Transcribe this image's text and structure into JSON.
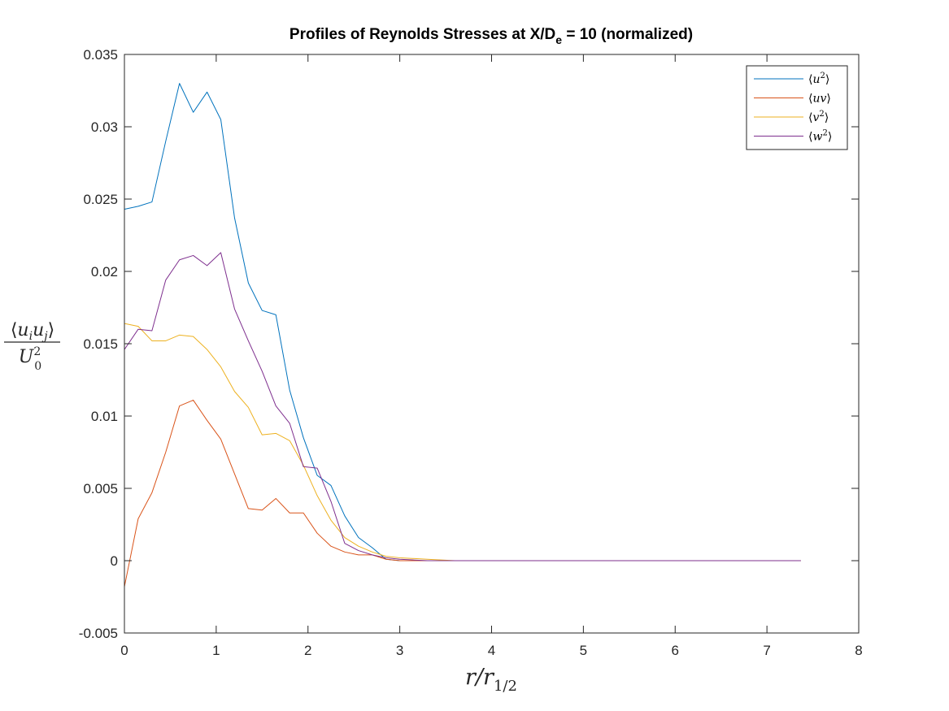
{
  "chart_data": {
    "type": "line",
    "title": {
      "main": "Profiles of Reynolds Stresses at X/D",
      "subscript": "e",
      "suffix": " = 10 (normalized)"
    },
    "xlabel": {
      "var": "r/r",
      "sub": "1/2"
    },
    "ylabel": {
      "numerator": {
        "open": "⟨",
        "a": "u",
        "a_sub": "i",
        "b": "u",
        "b_sub": "j",
        "close": "⟩"
      },
      "denominator": {
        "var": "U",
        "sup": "2",
        "sub": "0"
      }
    },
    "xlim": [
      0,
      8
    ],
    "ylim": [
      -0.005,
      0.035
    ],
    "xticks": [
      0,
      1,
      2,
      3,
      4,
      5,
      6,
      7,
      8
    ],
    "yticks": [
      -0.005,
      0,
      0.005,
      0.01,
      0.015,
      0.02,
      0.025,
      0.03,
      0.035
    ],
    "xtick_labels": [
      "0",
      "1",
      "2",
      "3",
      "4",
      "5",
      "6",
      "7",
      "8"
    ],
    "ytick_labels": [
      "-0.005",
      "0",
      "0.005",
      "0.01",
      "0.015",
      "0.02",
      "0.025",
      "0.03",
      "0.035"
    ],
    "grid": false,
    "legend_position": "top-right",
    "x": [
      0,
      0.15,
      0.3,
      0.45,
      0.6,
      0.75,
      0.9,
      1.05,
      1.2,
      1.35,
      1.5,
      1.65,
      1.8,
      1.95,
      2.1,
      2.25,
      2.4,
      2.55,
      2.7,
      2.85,
      3.0,
      3.3,
      3.6,
      4.0,
      4.5,
      5.0,
      5.5,
      6.0,
      6.5,
      7.0,
      7.37
    ],
    "series": [
      {
        "name": "⟨u²⟩",
        "legend": {
          "base": "u",
          "sup": "2"
        },
        "color": "#0072BD",
        "values": [
          0.0243,
          0.0245,
          0.0248,
          0.029,
          0.033,
          0.031,
          0.0324,
          0.0305,
          0.0237,
          0.0192,
          0.0173,
          0.017,
          0.0118,
          0.0085,
          0.0059,
          0.0052,
          0.0031,
          0.0016,
          0.0009,
          0.0001,
          0.0,
          0.0,
          0.0,
          0.0,
          0.0,
          0.0,
          0.0,
          0.0,
          0.0,
          0.0,
          0.0
        ]
      },
      {
        "name": "⟨uv⟩",
        "legend": {
          "base": "uv",
          "sup": ""
        },
        "color": "#D95319",
        "values": [
          -0.0018,
          0.0029,
          0.0047,
          0.0075,
          0.0107,
          0.0111,
          0.0097,
          0.0084,
          0.006,
          0.0036,
          0.0035,
          0.0043,
          0.0033,
          0.0033,
          0.0019,
          0.001,
          0.0006,
          0.0004,
          0.0004,
          0.0001,
          0.0,
          0.0,
          0.0,
          0.0,
          0.0,
          0.0,
          0.0,
          0.0,
          0.0,
          0.0,
          0.0
        ]
      },
      {
        "name": "⟨v²⟩",
        "legend": {
          "base": "v",
          "sup": "2"
        },
        "color": "#EDB120",
        "values": [
          0.0164,
          0.0162,
          0.0152,
          0.0152,
          0.0156,
          0.0155,
          0.0146,
          0.0134,
          0.0117,
          0.0106,
          0.0087,
          0.0088,
          0.0083,
          0.0066,
          0.0045,
          0.0028,
          0.0016,
          0.001,
          0.0006,
          0.0003,
          0.0002,
          0.0001,
          0.0,
          0.0,
          0.0,
          0.0,
          0.0,
          0.0,
          0.0,
          0.0,
          0.0
        ]
      },
      {
        "name": "⟨w²⟩",
        "legend": {
          "base": "w",
          "sup": "2"
        },
        "color": "#7E2F8E",
        "values": [
          0.0146,
          0.016,
          0.0159,
          0.0194,
          0.0208,
          0.0211,
          0.0204,
          0.0213,
          0.0174,
          0.0152,
          0.0131,
          0.0107,
          0.0095,
          0.0065,
          0.0064,
          0.0041,
          0.0012,
          0.0007,
          0.0004,
          0.0002,
          0.0001,
          0.0,
          0.0,
          0.0,
          0.0,
          0.0,
          0.0,
          0.0,
          0.0,
          0.0,
          0.0
        ]
      }
    ]
  }
}
